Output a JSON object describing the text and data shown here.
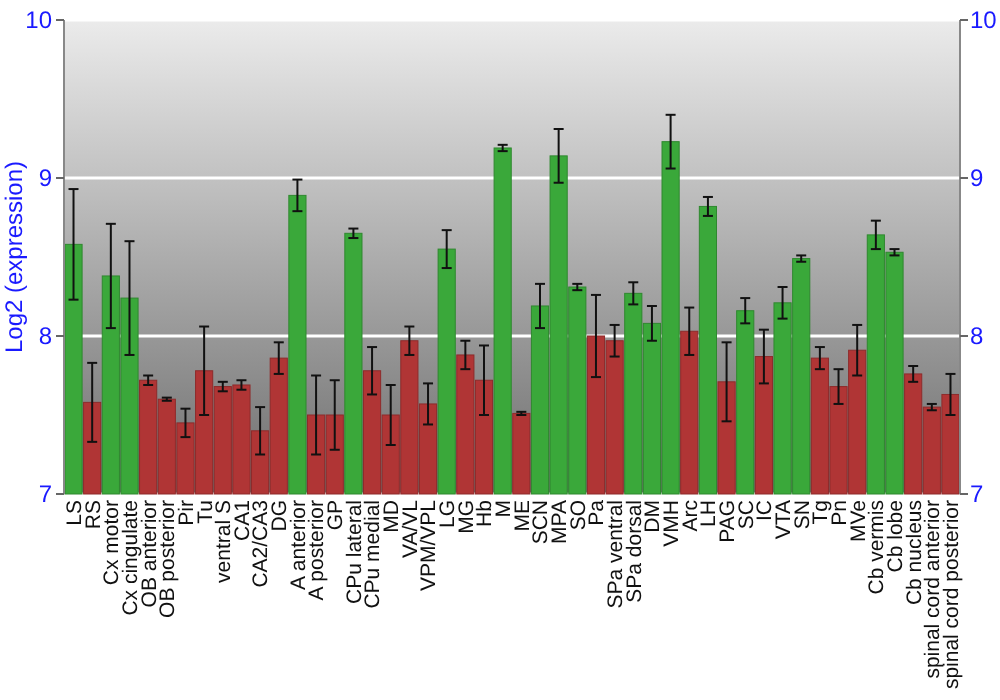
{
  "chart_data": {
    "type": "bar",
    "ylabel": "Log2 (expression)",
    "categories": [
      "LS",
      "RS",
      "Cx motor",
      "Cx cingulate",
      "OB anterior",
      "OB posterior",
      "Pir",
      "Tu",
      "ventral S",
      "CA1",
      "CA2/CA3",
      "DG",
      "A anterior",
      "A posterior",
      "GP",
      "CPu lateral",
      "CPu medial",
      "MD",
      "VA/VL",
      "VPM/VPL",
      "LG",
      "MG",
      "Hb",
      "M",
      "ME",
      "SCN",
      "MPA",
      "SO",
      "Pa",
      "SPa ventral",
      "SPa dorsal",
      "DM",
      "VMH",
      "Arc",
      "LH",
      "PAG",
      "SC",
      "IC",
      "VTA",
      "SN",
      "Tg",
      "Pn",
      "MVe",
      "Cb vermis",
      "Cb lobe",
      "Cb nucleus",
      "spinal cord anterior",
      "spinal cord posterior"
    ],
    "values": [
      8.58,
      7.58,
      8.38,
      8.24,
      7.72,
      7.6,
      7.45,
      7.78,
      7.68,
      7.69,
      7.4,
      7.86,
      8.89,
      7.5,
      7.5,
      8.65,
      7.78,
      7.5,
      7.97,
      7.57,
      8.55,
      7.88,
      7.72,
      9.19,
      7.51,
      8.19,
      9.14,
      8.31,
      8.0,
      7.97,
      8.27,
      8.08,
      9.23,
      8.03,
      8.82,
      7.71,
      8.16,
      7.87,
      8.21,
      8.49,
      7.86,
      7.68,
      7.91,
      8.64,
      8.53,
      7.76,
      7.55,
      7.63
    ],
    "errors": [
      0.35,
      0.25,
      0.33,
      0.36,
      0.03,
      0.01,
      0.09,
      0.28,
      0.03,
      0.03,
      0.15,
      0.1,
      0.1,
      0.25,
      0.22,
      0.03,
      0.15,
      0.19,
      0.09,
      0.13,
      0.12,
      0.09,
      0.22,
      0.02,
      0.01,
      0.14,
      0.17,
      0.02,
      0.26,
      0.1,
      0.07,
      0.11,
      0.17,
      0.15,
      0.06,
      0.25,
      0.08,
      0.17,
      0.1,
      0.02,
      0.07,
      0.11,
      0.16,
      0.09,
      0.02,
      0.05,
      0.02,
      0.13
    ],
    "colors": [
      "#3aa83a",
      "#b03535",
      "#3aa83a",
      "#3aa83a",
      "#b03535",
      "#b03535",
      "#b03535",
      "#b03535",
      "#b03535",
      "#b03535",
      "#b03535",
      "#b03535",
      "#3aa83a",
      "#b03535",
      "#b03535",
      "#3aa83a",
      "#b03535",
      "#b03535",
      "#b03535",
      "#b03535",
      "#3aa83a",
      "#b03535",
      "#b03535",
      "#3aa83a",
      "#b03535",
      "#3aa83a",
      "#3aa83a",
      "#3aa83a",
      "#b03535",
      "#b03535",
      "#3aa83a",
      "#3aa83a",
      "#3aa83a",
      "#b03535",
      "#3aa83a",
      "#b03535",
      "#3aa83a",
      "#b03535",
      "#3aa83a",
      "#3aa83a",
      "#b03535",
      "#b03535",
      "#b03535",
      "#3aa83a",
      "#3aa83a",
      "#b03535",
      "#b03535",
      "#b03535"
    ],
    "ylim": [
      7,
      10
    ],
    "yticks": [
      7,
      8,
      9,
      10
    ],
    "y2lim": [
      7,
      10
    ],
    "y2ticks": [
      7,
      8,
      9,
      10
    ],
    "grid": "y"
  }
}
